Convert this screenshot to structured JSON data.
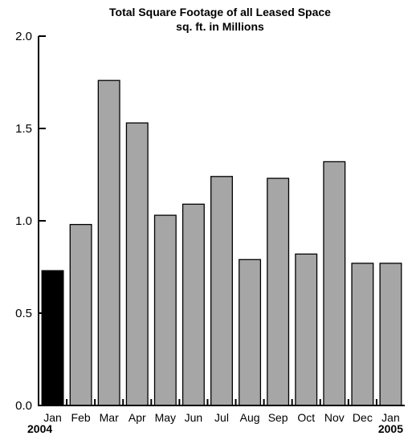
{
  "chart_data": {
    "type": "bar",
    "title": "Total Square Footage of all Leased Space",
    "subtitle": "sq. ft. in Millions",
    "xlabel": "",
    "ylabel": "",
    "ylim": [
      0,
      2.0
    ],
    "yticks": [
      "0.0",
      "0.5",
      "1.0",
      "1.5",
      "2.0"
    ],
    "categories": [
      "Jan",
      "Feb",
      "Mar",
      "Apr",
      "May",
      "Jun",
      "Jul",
      "Aug",
      "Sep",
      "Oct",
      "Nov",
      "Dec",
      "Jan"
    ],
    "year_labels": {
      "start": "2004",
      "end": "2005"
    },
    "values": [
      0.73,
      0.98,
      1.76,
      1.53,
      1.03,
      1.09,
      1.24,
      0.79,
      1.23,
      0.82,
      1.32,
      0.77,
      0.77
    ],
    "highlight_index": 0,
    "colors": {
      "highlight": "#000000",
      "bar": "#a6a6a6",
      "axis": "#000000"
    },
    "grid": false,
    "legend": "none"
  }
}
